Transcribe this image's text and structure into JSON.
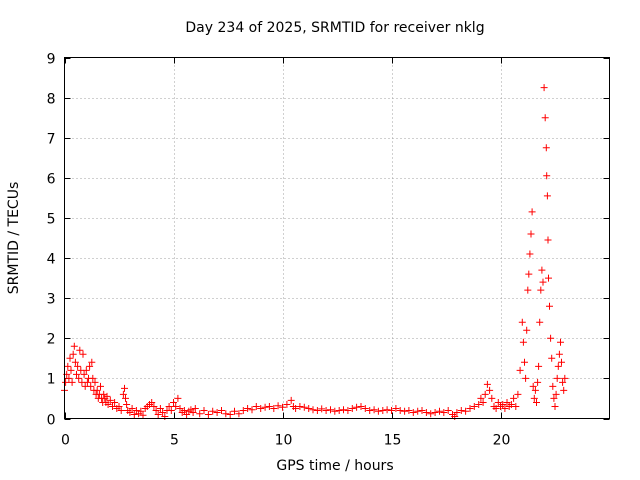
{
  "chart_data": {
    "type": "scatter",
    "title": "Day 234 of 2025, SRMTID for receiver nklg",
    "xlabel": "GPS time / hours",
    "ylabel": "SRMTID / TECUs",
    "xlim": [
      0,
      25
    ],
    "ylim": [
      0,
      9
    ],
    "xticks": [
      0,
      5,
      10,
      15,
      20
    ],
    "xtick_labels": [
      "0",
      "5",
      "10",
      "15",
      "20"
    ],
    "yticks": [
      0,
      1,
      2,
      3,
      4,
      5,
      6,
      7,
      8,
      9
    ],
    "ytick_labels": [
      "0",
      "1",
      "2",
      "3",
      "4",
      "5",
      "6",
      "7",
      "8",
      "9"
    ],
    "grid": true,
    "marker": "+",
    "color": "#ff0000",
    "series": [
      {
        "name": "SRMTID",
        "points": [
          [
            0.0,
            0.7
          ],
          [
            0.05,
            0.9
          ],
          [
            0.1,
            1.1
          ],
          [
            0.15,
            1.3
          ],
          [
            0.2,
            1.0
          ],
          [
            0.25,
            1.5
          ],
          [
            0.3,
            1.2
          ],
          [
            0.35,
            0.9
          ],
          [
            0.4,
            1.6
          ],
          [
            0.45,
            1.8
          ],
          [
            0.5,
            1.4
          ],
          [
            0.55,
            1.1
          ],
          [
            0.6,
            1.3
          ],
          [
            0.65,
            1.0
          ],
          [
            0.7,
            1.7
          ],
          [
            0.75,
            1.2
          ],
          [
            0.8,
            0.9
          ],
          [
            0.85,
            1.6
          ],
          [
            0.9,
            1.1
          ],
          [
            0.95,
            0.8
          ],
          [
            1.0,
            1.2
          ],
          [
            1.05,
            0.9
          ],
          [
            1.1,
            1.0
          ],
          [
            1.15,
            1.3
          ],
          [
            1.2,
            0.8
          ],
          [
            1.25,
            1.4
          ],
          [
            1.3,
            1.0
          ],
          [
            1.35,
            0.7
          ],
          [
            1.4,
            0.9
          ],
          [
            1.45,
            0.6
          ],
          [
            1.5,
            0.7
          ],
          [
            1.55,
            0.5
          ],
          [
            1.6,
            0.6
          ],
          [
            1.65,
            0.8
          ],
          [
            1.7,
            0.5
          ],
          [
            1.75,
            0.4
          ],
          [
            1.8,
            0.6
          ],
          [
            1.85,
            0.5
          ],
          [
            1.9,
            0.4
          ],
          [
            1.95,
            0.55
          ],
          [
            2.0,
            0.35
          ],
          [
            2.1,
            0.45
          ],
          [
            2.2,
            0.3
          ],
          [
            2.3,
            0.4
          ],
          [
            2.4,
            0.25
          ],
          [
            2.5,
            0.3
          ],
          [
            2.6,
            0.2
          ],
          [
            2.7,
            0.6
          ],
          [
            2.75,
            0.75
          ],
          [
            2.8,
            0.5
          ],
          [
            2.85,
            0.35
          ],
          [
            2.9,
            0.2
          ],
          [
            3.0,
            0.15
          ],
          [
            3.1,
            0.25
          ],
          [
            3.2,
            0.1
          ],
          [
            3.3,
            0.2
          ],
          [
            3.4,
            0.12
          ],
          [
            3.5,
            0.18
          ],
          [
            3.6,
            0.08
          ],
          [
            3.7,
            0.25
          ],
          [
            3.8,
            0.3
          ],
          [
            3.9,
            0.35
          ],
          [
            4.0,
            0.4
          ],
          [
            4.1,
            0.3
          ],
          [
            4.2,
            0.2
          ],
          [
            4.3,
            0.1
          ],
          [
            4.4,
            0.25
          ],
          [
            4.5,
            0.15
          ],
          [
            4.6,
            0.05
          ],
          [
            4.7,
            0.2
          ],
          [
            4.8,
            0.3
          ],
          [
            4.9,
            0.2
          ],
          [
            5.0,
            0.4
          ],
          [
            5.1,
            0.3
          ],
          [
            5.2,
            0.5
          ],
          [
            5.3,
            0.25
          ],
          [
            5.4,
            0.15
          ],
          [
            5.5,
            0.2
          ],
          [
            5.6,
            0.1
          ],
          [
            5.7,
            0.18
          ],
          [
            5.8,
            0.22
          ],
          [
            5.9,
            0.15
          ],
          [
            6.0,
            0.25
          ],
          [
            6.2,
            0.12
          ],
          [
            6.4,
            0.2
          ],
          [
            6.6,
            0.1
          ],
          [
            6.8,
            0.18
          ],
          [
            7.0,
            0.15
          ],
          [
            7.2,
            0.2
          ],
          [
            7.4,
            0.12
          ],
          [
            7.6,
            0.1
          ],
          [
            7.8,
            0.18
          ],
          [
            8.0,
            0.12
          ],
          [
            8.2,
            0.2
          ],
          [
            8.4,
            0.25
          ],
          [
            8.6,
            0.22
          ],
          [
            8.8,
            0.3
          ],
          [
            9.0,
            0.25
          ],
          [
            9.2,
            0.28
          ],
          [
            9.4,
            0.3
          ],
          [
            9.6,
            0.25
          ],
          [
            9.8,
            0.32
          ],
          [
            10.0,
            0.28
          ],
          [
            10.2,
            0.35
          ],
          [
            10.4,
            0.45
          ],
          [
            10.5,
            0.3
          ],
          [
            10.6,
            0.25
          ],
          [
            10.8,
            0.3
          ],
          [
            11.0,
            0.28
          ],
          [
            11.2,
            0.25
          ],
          [
            11.4,
            0.22
          ],
          [
            11.6,
            0.2
          ],
          [
            11.8,
            0.24
          ],
          [
            12.0,
            0.2
          ],
          [
            12.2,
            0.22
          ],
          [
            12.4,
            0.18
          ],
          [
            12.6,
            0.2
          ],
          [
            12.8,
            0.22
          ],
          [
            13.0,
            0.2
          ],
          [
            13.2,
            0.25
          ],
          [
            13.4,
            0.28
          ],
          [
            13.6,
            0.3
          ],
          [
            13.8,
            0.25
          ],
          [
            14.0,
            0.2
          ],
          [
            14.2,
            0.22
          ],
          [
            14.4,
            0.18
          ],
          [
            14.6,
            0.2
          ],
          [
            14.8,
            0.22
          ],
          [
            15.0,
            0.2
          ],
          [
            15.2,
            0.25
          ],
          [
            15.4,
            0.2
          ],
          [
            15.6,
            0.18
          ],
          [
            15.8,
            0.2
          ],
          [
            16.0,
            0.15
          ],
          [
            16.2,
            0.18
          ],
          [
            16.4,
            0.2
          ],
          [
            16.6,
            0.15
          ],
          [
            16.8,
            0.12
          ],
          [
            17.0,
            0.15
          ],
          [
            17.2,
            0.18
          ],
          [
            17.4,
            0.15
          ],
          [
            17.6,
            0.2
          ],
          [
            17.8,
            0.1
          ],
          [
            17.9,
            0.05
          ],
          [
            18.0,
            0.15
          ],
          [
            18.2,
            0.2
          ],
          [
            18.4,
            0.18
          ],
          [
            18.6,
            0.25
          ],
          [
            18.8,
            0.3
          ],
          [
            19.0,
            0.35
          ],
          [
            19.1,
            0.5
          ],
          [
            19.2,
            0.4
          ],
          [
            19.3,
            0.6
          ],
          [
            19.4,
            0.85
          ],
          [
            19.5,
            0.7
          ],
          [
            19.6,
            0.5
          ],
          [
            19.7,
            0.3
          ],
          [
            19.8,
            0.25
          ],
          [
            19.9,
            0.4
          ],
          [
            20.0,
            0.3
          ],
          [
            20.1,
            0.35
          ],
          [
            20.2,
            0.25
          ],
          [
            20.3,
            0.4
          ],
          [
            20.4,
            0.3
          ],
          [
            20.5,
            0.35
          ],
          [
            20.6,
            0.5
          ],
          [
            20.7,
            0.3
          ],
          [
            20.8,
            0.6
          ],
          [
            20.9,
            1.2
          ],
          [
            21.0,
            2.4
          ],
          [
            21.05,
            1.9
          ],
          [
            21.1,
            1.4
          ],
          [
            21.15,
            1.0
          ],
          [
            21.2,
            2.2
          ],
          [
            21.25,
            3.2
          ],
          [
            21.3,
            3.6
          ],
          [
            21.35,
            4.1
          ],
          [
            21.4,
            4.6
          ],
          [
            21.45,
            5.15
          ],
          [
            21.5,
            0.8
          ],
          [
            21.55,
            0.5
          ],
          [
            21.6,
            0.7
          ],
          [
            21.65,
            0.4
          ],
          [
            21.7,
            0.9
          ],
          [
            21.75,
            1.3
          ],
          [
            21.8,
            2.4
          ],
          [
            21.85,
            3.2
          ],
          [
            21.9,
            3.7
          ],
          [
            21.95,
            3.4
          ],
          [
            22.0,
            8.25
          ],
          [
            22.05,
            7.5
          ],
          [
            22.1,
            6.75
          ],
          [
            22.12,
            6.05
          ],
          [
            22.15,
            5.55
          ],
          [
            22.18,
            4.45
          ],
          [
            22.2,
            3.5
          ],
          [
            22.25,
            2.8
          ],
          [
            22.3,
            2.0
          ],
          [
            22.35,
            1.5
          ],
          [
            22.4,
            0.8
          ],
          [
            22.45,
            0.5
          ],
          [
            22.5,
            0.3
          ],
          [
            22.55,
            0.6
          ],
          [
            22.6,
            1.0
          ],
          [
            22.65,
            1.3
          ],
          [
            22.7,
            1.6
          ],
          [
            22.75,
            1.9
          ],
          [
            22.8,
            1.4
          ],
          [
            22.85,
            0.9
          ],
          [
            22.9,
            0.7
          ],
          [
            22.95,
            1.0
          ]
        ]
      }
    ]
  }
}
